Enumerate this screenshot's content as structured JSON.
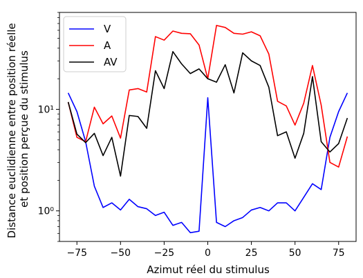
{
  "chart_data": {
    "type": "line",
    "xlabel": "Azimut réel du stimulus",
    "ylabel_lines": [
      "Distance euclidienne entre position réelle",
      "et position perçue du stimulus"
    ],
    "xlim": [
      -85,
      85
    ],
    "ylim": [
      0.5,
      90
    ],
    "yscale": "log",
    "grid": false,
    "legend_position": "top-left",
    "x_ticks": [
      -75,
      -50,
      -25,
      0,
      25,
      50,
      75
    ],
    "x_tick_labels": [
      "−75",
      "−50",
      "−25",
      "0",
      "25",
      "50",
      "75"
    ],
    "y_ticks": [
      1,
      10
    ],
    "y_tick_labels": [
      "10⁰",
      "10¹"
    ],
    "x": [
      -80,
      -75,
      -70,
      -65,
      -60,
      -55,
      -50,
      -45,
      -40,
      -35,
      -30,
      -25,
      -20,
      -15,
      -10,
      -5,
      0,
      5,
      10,
      15,
      20,
      25,
      30,
      35,
      40,
      45,
      50,
      55,
      60,
      65,
      70,
      75,
      80
    ],
    "series": [
      {
        "name": "V",
        "color": "#0000ff",
        "values": [
          14.5,
          9.5,
          4.8,
          1.75,
          1.08,
          1.2,
          1.02,
          1.3,
          1.1,
          1.05,
          0.9,
          0.97,
          0.72,
          0.77,
          0.61,
          0.63,
          13.0,
          0.77,
          0.7,
          0.8,
          0.86,
          1.02,
          1.08,
          1.0,
          1.2,
          1.2,
          1.0,
          1.36,
          1.85,
          1.62,
          5.3,
          9.5,
          14.5
        ]
      },
      {
        "name": "A",
        "color": "#ff0000",
        "values": [
          11.8,
          5.3,
          4.8,
          10.5,
          7.2,
          8.6,
          5.2,
          15.5,
          16.0,
          14.8,
          52.0,
          48.0,
          59.0,
          56.0,
          55.5,
          43.0,
          20.0,
          67.0,
          64.0,
          56.0,
          55.0,
          58.0,
          53.0,
          35.0,
          12.0,
          10.8,
          7.0,
          11.5,
          27.0,
          11.0,
          3.0,
          2.7,
          5.4
        ]
      },
      {
        "name": "AV",
        "color": "#000000",
        "values": [
          11.8,
          5.7,
          4.7,
          5.8,
          3.5,
          5.3,
          2.2,
          8.7,
          8.5,
          6.5,
          24.0,
          16.0,
          37.0,
          28.0,
          22.5,
          25.0,
          20.0,
          18.5,
          27.5,
          14.5,
          36.0,
          30.0,
          27.0,
          16.5,
          5.5,
          6.0,
          3.3,
          5.8,
          21.0,
          4.8,
          3.8,
          4.6,
          8.2
        ]
      }
    ]
  }
}
